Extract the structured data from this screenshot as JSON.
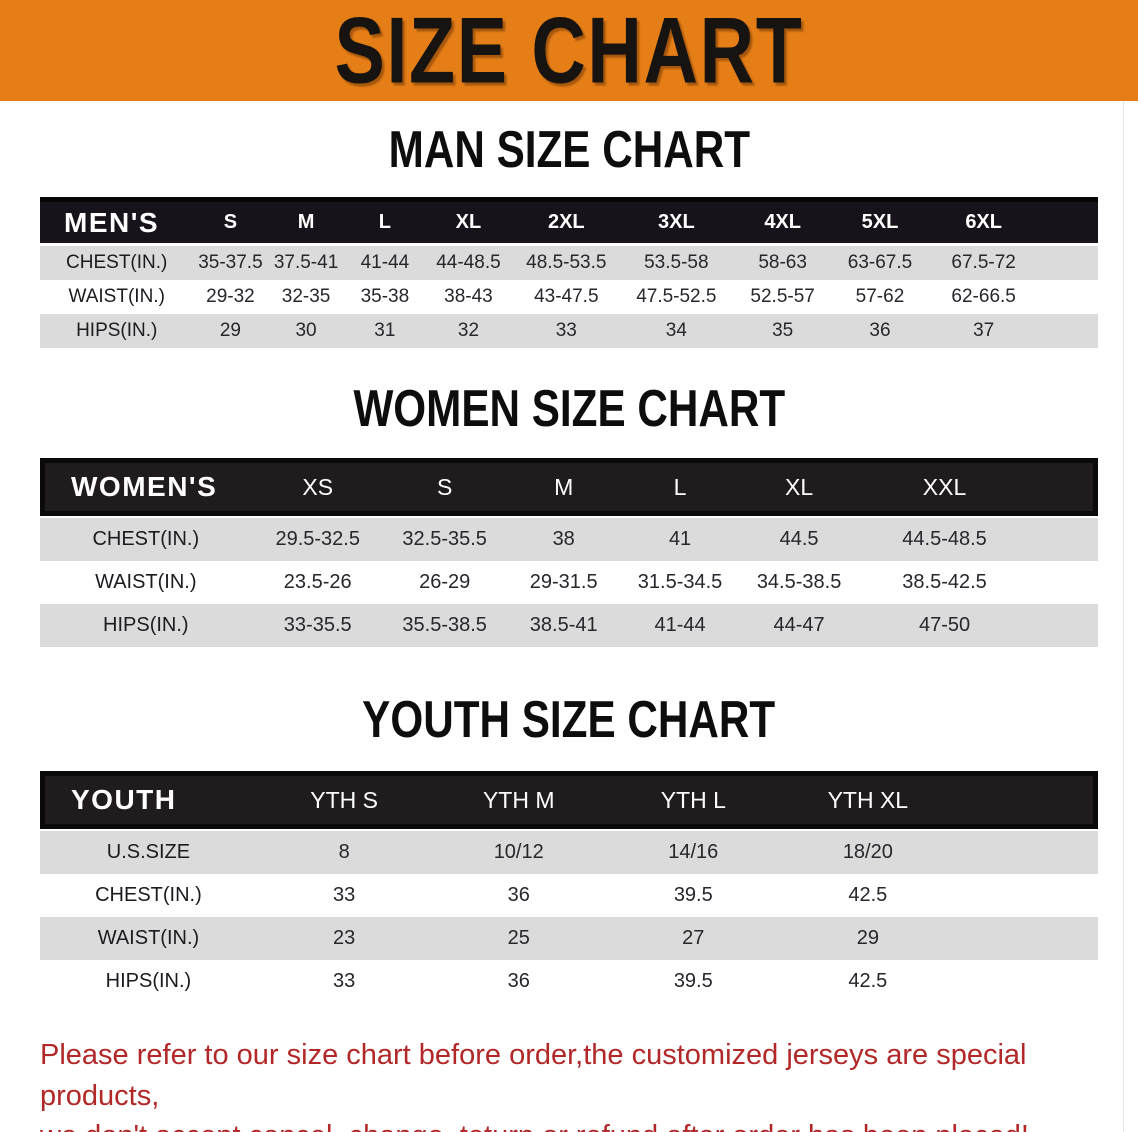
{
  "banner": {
    "title": "SIZE CHART"
  },
  "sections": [
    {
      "heading": "MAN SIZE CHART",
      "table": {
        "title": "MEN'S",
        "columns": [
          "S",
          "M",
          "L",
          "XL",
          "2XL",
          "3XL",
          "4XL",
          "5XL",
          "6XL"
        ],
        "rows": [
          {
            "label": "CHEST(IN.)",
            "values": [
              "35-37.5",
              "37.5-41",
              "41-44",
              "44-48.5",
              "48.5-53.5",
              "53.5-58",
              "58-63",
              "63-67.5",
              "67.5-72"
            ]
          },
          {
            "label": "WAIST(IN.)",
            "values": [
              "29-32",
              "32-35",
              "35-38",
              "38-43",
              "43-47.5",
              "47.5-52.5",
              "52.5-57",
              "57-62",
              "62-66.5"
            ]
          },
          {
            "label": "HIPS(IN.)",
            "values": [
              "29",
              "30",
              "31",
              "32",
              "33",
              "34",
              "35",
              "36",
              "37"
            ]
          }
        ]
      }
    },
    {
      "heading": "WOMEN SIZE CHART",
      "table": {
        "title": "WOMEN'S",
        "columns": [
          "XS",
          "S",
          "M",
          "L",
          "XL",
          "XXL"
        ],
        "rows": [
          {
            "label": "CHEST(IN.)",
            "values": [
              "29.5-32.5",
              "32.5-35.5",
              "38",
              "41",
              "44.5",
              "44.5-48.5"
            ]
          },
          {
            "label": "WAIST(IN.)",
            "values": [
              "23.5-26",
              "26-29",
              "29-31.5",
              "31.5-34.5",
              "34.5-38.5",
              "38.5-42.5"
            ]
          },
          {
            "label": "HIPS(IN.)",
            "values": [
              "33-35.5",
              "35.5-38.5",
              "38.5-41",
              "41-44",
              "44-47",
              "47-50"
            ]
          }
        ]
      }
    },
    {
      "heading": "YOUTH SIZE CHART",
      "table": {
        "title": "YOUTH",
        "columns": [
          "YTH S",
          "YTH M",
          "YTH L",
          "YTH XL"
        ],
        "rows": [
          {
            "label": "U.S.SIZE",
            "values": [
              "8",
              "10/12",
              "14/16",
              "18/20"
            ]
          },
          {
            "label": "CHEST(IN.)",
            "values": [
              "33",
              "36",
              "39.5",
              "42.5"
            ]
          },
          {
            "label": "WAIST(IN.)",
            "values": [
              "23",
              "25",
              "27",
              "29"
            ]
          },
          {
            "label": "HIPS(IN.)",
            "values": [
              "33",
              "36",
              "39.5",
              "42.5"
            ]
          }
        ]
      }
    }
  ],
  "footnote": {
    "line1": "Please refer to our size chart before order,the customized jerseys are special products,",
    "line2": "we don't accept cancel, change, teturn or refund after order has been placed!"
  },
  "colors": {
    "banner_bg": "#E67E17",
    "header_bar": "#18131B",
    "boxed_header_bg": "#201B1C",
    "row_alt_gray": "#DBDBDB",
    "footnote_red": "#B22828"
  }
}
